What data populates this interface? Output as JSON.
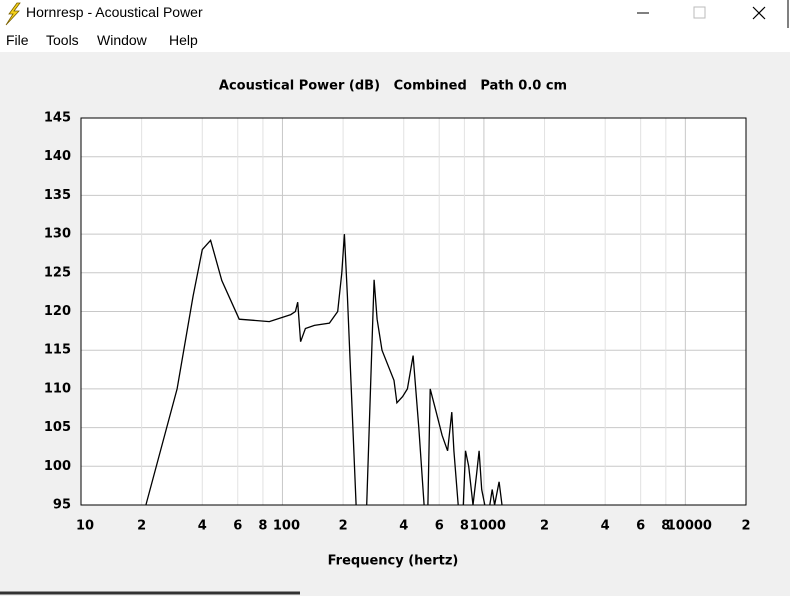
{
  "window": {
    "title": "Hornresp - Acoustical Power",
    "menu": [
      "File",
      "Tools",
      "Window",
      "Help"
    ]
  },
  "chart_data": {
    "type": "line",
    "title": "Acoustical Power (dB)   Combined   Path 0.0 cm",
    "x_label": "Frequency (hertz)",
    "x_scale": "log",
    "grid": true,
    "xlim": [
      10,
      20000
    ],
    "ylim": [
      95,
      145
    ],
    "xticks": [
      10,
      {
        "value": 20,
        "label": "2"
      },
      {
        "value": 40,
        "label": "4"
      },
      {
        "value": 60,
        "label": "6"
      },
      {
        "value": 80,
        "label": "8"
      },
      100,
      {
        "value": 200,
        "label": "2"
      },
      {
        "value": 400,
        "label": "4"
      },
      {
        "value": 600,
        "label": "6"
      },
      {
        "value": 800,
        "label": "8"
      },
      1000,
      {
        "value": 2000,
        "label": "2"
      },
      {
        "value": 4000,
        "label": "4"
      },
      {
        "value": 6000,
        "label": "6"
      },
      {
        "value": 8000,
        "label": "8"
      },
      10000,
      {
        "value": 20000,
        "label": "2"
      }
    ],
    "yticks": [
      95,
      100,
      105,
      110,
      115,
      120,
      125,
      130,
      135,
      140,
      145
    ],
    "series": [
      {
        "color": "#000000",
        "x": [
          21,
          30,
          36,
          40,
          44,
          50,
          61,
          86,
          110,
          116,
          119,
          123,
          130,
          144,
          171,
          188,
          197,
          203,
          210,
          232,
          251,
          262,
          275,
          285,
          295,
          312,
          358,
          370,
          395,
          417,
          445,
          475,
          505,
          520,
          527,
          541,
          580,
          620,
          660,
          693,
          710,
          745,
          765,
          790,
          810,
          840,
          883,
          920,
          947,
          975,
          1010,
          1040,
          1070,
          1100,
          1130,
          1190,
          1230
        ],
        "values": [
          95,
          110,
          122,
          128,
          129.2,
          124,
          119,
          118.7,
          119.6,
          120,
          121.2,
          116.1,
          117.8,
          118.2,
          118.5,
          120,
          125,
          130,
          122,
          95,
          null,
          95,
          112,
          124.1,
          119,
          115,
          111.1,
          108.2,
          109,
          110,
          114.3,
          105,
          95,
          null,
          95,
          110,
          107,
          104,
          102,
          107,
          102,
          95,
          null,
          95,
          102,
          100,
          95,
          99,
          102,
          97,
          95,
          null,
          95,
          97,
          95,
          98,
          95
        ]
      }
    ]
  }
}
